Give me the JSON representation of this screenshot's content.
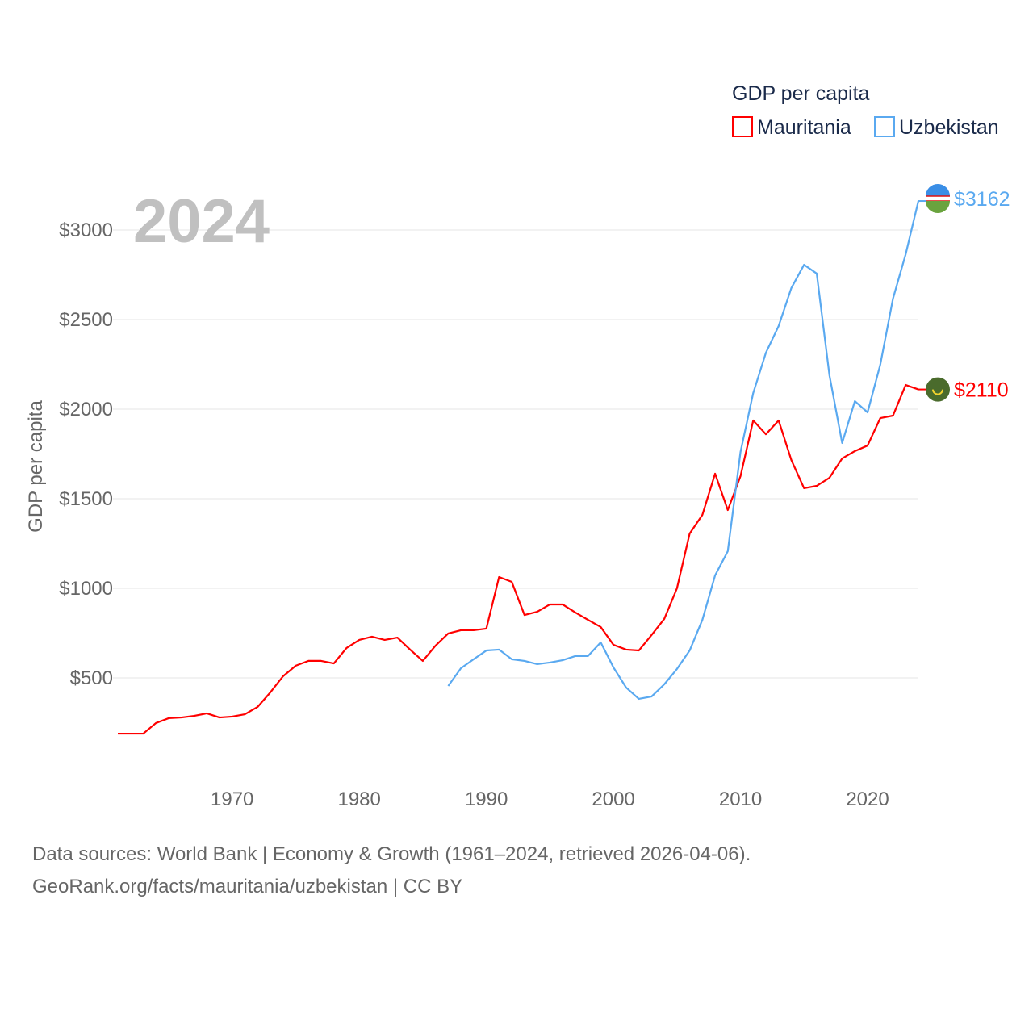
{
  "chart_data": {
    "type": "line",
    "title": "GDP per capita",
    "year_label": "2024",
    "ylabel": "GDP per capita",
    "xlabel": "",
    "ylim": [
      0,
      3250
    ],
    "xlim": [
      1961,
      2024
    ],
    "grid": true,
    "legend_placement": "top-right",
    "y_ticks": [
      {
        "v": 500,
        "label": "$500"
      },
      {
        "v": 1000,
        "label": "$1000"
      },
      {
        "v": 1500,
        "label": "$1500"
      },
      {
        "v": 2000,
        "label": "$2000"
      },
      {
        "v": 2500,
        "label": "$2500"
      },
      {
        "v": 3000,
        "label": "$3000"
      }
    ],
    "x_ticks": [
      {
        "v": 1970,
        "label": "1970"
      },
      {
        "v": 1980,
        "label": "1980"
      },
      {
        "v": 1990,
        "label": "1990"
      },
      {
        "v": 2000,
        "label": "2000"
      },
      {
        "v": 2010,
        "label": "2010"
      },
      {
        "v": 2020,
        "label": "2020"
      }
    ],
    "series": [
      {
        "name": "Mauritania",
        "color": "#ff0000",
        "end_label": "$2110",
        "flag": "mauritania-flag",
        "start": 1961,
        "values": [
          189,
          189,
          189,
          248,
          275,
          279,
          288,
          302,
          279,
          284,
          297,
          338,
          419,
          509,
          568,
          595,
          595,
          581,
          667,
          712,
          730,
          712,
          725,
          658,
          595,
          680,
          748,
          766,
          766,
          775,
          1063,
          1036,
          851,
          869,
          910,
          910,
          865,
          824,
          784,
          685,
          658,
          653,
          739,
          829,
          1000,
          1306,
          1410,
          1640,
          1437,
          1626,
          1937,
          1860,
          1937,
          1716,
          1559,
          1572,
          1617,
          1725,
          1766,
          1797,
          1950,
          1964,
          2135,
          2110
        ]
      },
      {
        "name": "Uzbekistan",
        "color": "#5aa9f0",
        "end_label": "$3162",
        "flag": "uzbekistan-flag",
        "start": 1987,
        "values": [
          455,
          554,
          604,
          653,
          658,
          604,
          595,
          577,
          586,
          599,
          622,
          622,
          698,
          559,
          446,
          383,
          396,
          464,
          550,
          653,
          824,
          1072,
          1207,
          1761,
          2090,
          2315,
          2464,
          2676,
          2806,
          2757,
          2189,
          1811,
          2045,
          1982,
          2248,
          2617,
          2865,
          3162
        ]
      }
    ]
  },
  "footer": {
    "line1": "Data sources: World Bank | Economy & Growth (1961–2024, retrieved 2026-04-06).",
    "line2": "GeoRank.org/facts/mauritania/uzbekistan | CC BY"
  }
}
